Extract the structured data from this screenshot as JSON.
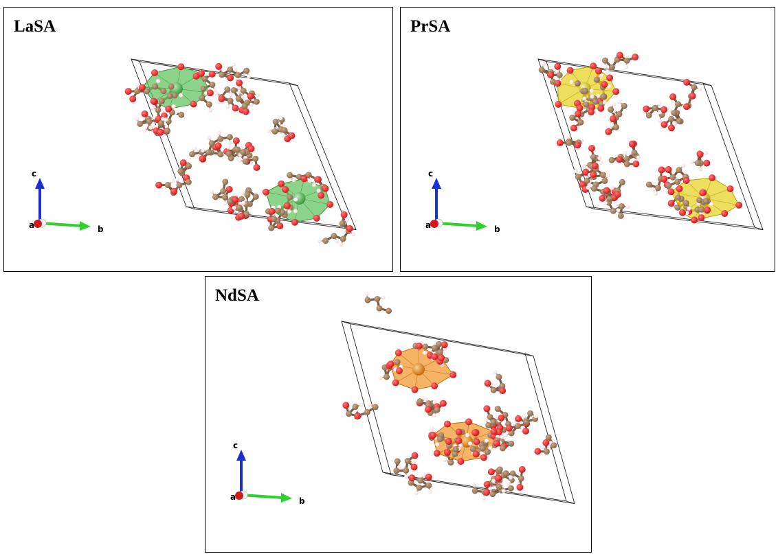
{
  "panels": [
    {
      "id": "lasa",
      "title": "LaSA",
      "polyhedron_color": "#5fc45f",
      "polyhedron_dark": "#3e9a3e",
      "center_color": "#b9eeb9"
    },
    {
      "id": "prsa",
      "title": "PrSA",
      "polyhedron_color": "#e6d21e",
      "polyhedron_dark": "#b5a30e",
      "center_color": "#fff4a0"
    },
    {
      "id": "ndsa",
      "title": "NdSA",
      "polyhedron_color": "#f0962a",
      "polyhedron_dark": "#c46d10",
      "center_color": "#ffcf8a"
    }
  ],
  "axes": {
    "c_label": "c",
    "a_label": "a",
    "b_label": "b",
    "c_color": "#1a2fd6",
    "b_color": "#2ed12e",
    "a_color": "#d11a1a"
  },
  "atom_colors": {
    "carbon": "#8a6a4e",
    "oxygen": "#d41818",
    "hydrogen": "#f3d9d9",
    "bond": "#7a5a40"
  }
}
